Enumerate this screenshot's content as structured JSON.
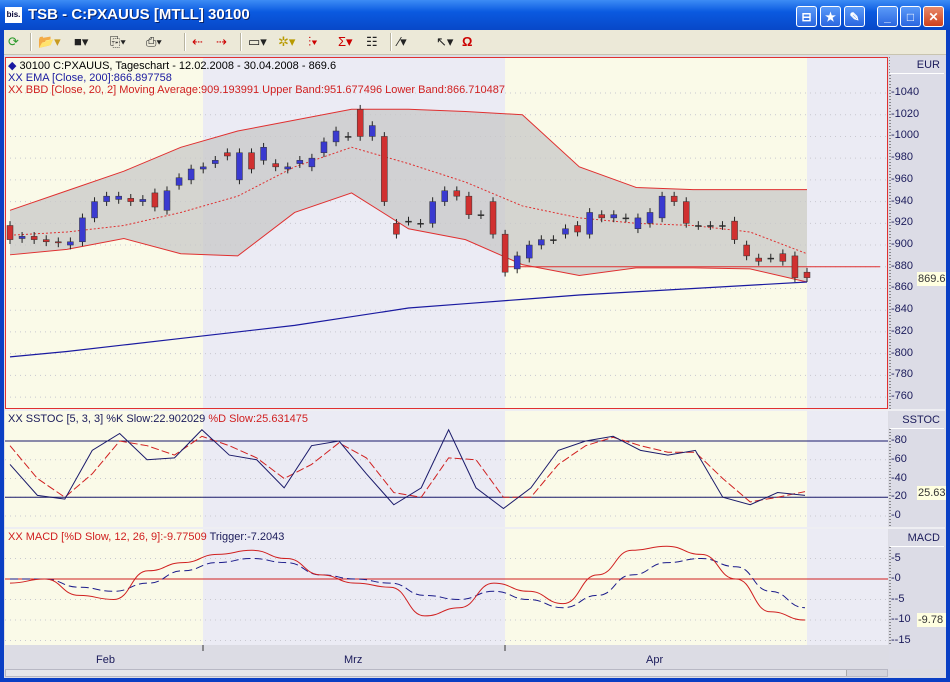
{
  "window": {
    "title": "TSB - C:PXAUUS [MTLL] 30100",
    "app_icon": "bis."
  },
  "titlebar_buttons": [
    "pin-icon",
    "favorite-icon",
    "edit-icon",
    "minimize-icon",
    "maximize-icon",
    "close-icon"
  ],
  "toolbar": {
    "items": [
      "refresh-icon",
      "open-folder-icon",
      "save-icon",
      "copy-icon",
      "print-icon",
      "back-chart-icon",
      "forward-chart-icon",
      "window-layout-icon",
      "indicator-wizard-icon",
      "chart-type-icon",
      "sigma-indicator-icon",
      "properties-icon",
      "draw-line-icon",
      "cursor-icon",
      "magnet-icon"
    ]
  },
  "colors": {
    "bull": "#3a3ad0",
    "bear": "#d03030",
    "band_fill": "#c8c8c8",
    "band_line": "#e03030",
    "ema": "#1a1aa0",
    "panel_border": "#e03030",
    "bg_yellow": "#fafae8",
    "bg_lavender": "#ebebf4"
  },
  "price_panel": {
    "legend": [
      {
        "text": "30100  C:PXAUUS, Tageschart - 12.02.2008 - 30.04.2008 - 869.6",
        "color": "#000000"
      },
      {
        "text": "XX EMA [Close, 200]:866.897758",
        "color": "#1a1aa0"
      },
      {
        "text": "XX BBD [Close, 20, 2] Moving Average:909.193991 Upper Band:951.677496 Lower Band:866.710487",
        "color": "#d02020"
      }
    ],
    "axis_title": "EUR",
    "last_value": "869.6",
    "ticks": [
      "1040",
      "1020",
      "1000",
      "980",
      "960",
      "940",
      "920",
      "900",
      "880",
      "860",
      "840",
      "820",
      "800",
      "780",
      "760"
    ]
  },
  "sstoc_panel": {
    "legend_k": "XX SSTOC [5, 3, 3] %K Slow:22.902029",
    "legend_d": "%D Slow:25.631475",
    "axis_title": "SSTOC",
    "last_value": "25.63",
    "ticks": [
      "80",
      "60",
      "40",
      "20",
      "0"
    ]
  },
  "macd_panel": {
    "legend_macd": "XX MACD [%D Slow, 12, 26, 9]:-9.77509",
    "legend_trigger": "Trigger:-7.2043",
    "axis_title": "MACD",
    "last_value": "-9.78",
    "ticks": [
      "5",
      "0",
      "-5",
      "-10",
      "-15"
    ]
  },
  "time_axis": {
    "months": [
      "Feb",
      "Mrz",
      "Apr"
    ]
  },
  "chart_data": [
    {
      "type": "candlestick",
      "title": "30100  C:PXAUUS, Tageschart - 12.02.2008 - 30.04.2008 - 869.6",
      "ylabel": "EUR",
      "ylim": [
        750,
        1050
      ],
      "x_range": [
        "12.02.2008",
        "30.04.2008"
      ],
      "open": [
        918,
        906,
        908,
        905,
        903,
        900,
        903,
        925,
        940,
        942,
        943,
        940,
        948,
        932,
        955,
        960,
        970,
        975,
        985,
        960,
        985,
        978,
        975,
        970,
        975,
        972,
        985,
        995,
        1000,
        1025,
        1000,
        1000,
        920,
        922,
        920,
        920,
        940,
        950,
        945,
        928,
        940,
        910,
        878,
        888,
        900,
        905,
        910,
        918,
        910,
        928,
        925,
        925,
        915,
        920,
        925,
        945,
        940,
        918,
        918,
        918,
        922,
        900,
        888,
        888,
        892,
        890,
        875
      ],
      "close": [
        905,
        908,
        905,
        903,
        902,
        903,
        925,
        940,
        945,
        945,
        940,
        942,
        935,
        950,
        962,
        970,
        972,
        978,
        982,
        985,
        970,
        990,
        972,
        972,
        978,
        980,
        995,
        1005,
        1000,
        1000,
        1010,
        940,
        910,
        922,
        920,
        940,
        950,
        945,
        928,
        928,
        910,
        875,
        890,
        900,
        905,
        905,
        915,
        912,
        930,
        925,
        928,
        925,
        925,
        930,
        945,
        940,
        920,
        918,
        918,
        918,
        905,
        890,
        885,
        888,
        885,
        870,
        870
      ],
      "bollinger": {
        "upper": [
          932,
          950,
          968,
          990,
          1005,
          1015,
          1025,
          1025,
          1023,
          1020,
          972,
          953,
          951,
          951,
          951
        ],
        "middle": [
          909,
          912,
          918,
          930,
          945,
          972,
          990,
          975,
          958,
          936,
          925,
          920,
          918,
          912,
          892
        ],
        "lower": [
          891,
          896,
          906,
          892,
          890,
          930,
          948,
          915,
          905,
          882,
          872,
          879,
          879,
          878,
          866
        ]
      },
      "ema200": [
        797,
        802,
        808,
        814,
        820,
        826,
        834,
        842,
        846,
        850,
        854,
        857,
        860,
        863,
        866
      ],
      "horizontal_line": 880,
      "grid": true
    },
    {
      "type": "line",
      "title": "XX SSTOC [5, 3, 3]",
      "ylim": [
        -5,
        100
      ],
      "reference_lines": [
        80,
        20
      ],
      "series": [
        {
          "name": "%K Slow",
          "values": [
            55,
            22,
            18,
            70,
            88,
            60,
            62,
            92,
            65,
            60,
            30,
            75,
            80,
            45,
            12,
            30,
            92,
            30,
            8,
            30,
            70,
            80,
            85,
            70,
            65,
            70,
            20,
            12,
            25,
            22
          ]
        },
        {
          "name": "%D Slow",
          "values": [
            75,
            40,
            20,
            45,
            80,
            75,
            65,
            85,
            75,
            62,
            40,
            55,
            78,
            62,
            25,
            20,
            62,
            60,
            20,
            20,
            55,
            75,
            84,
            75,
            68,
            68,
            40,
            15,
            20,
            26
          ]
        }
      ],
      "grid": true
    },
    {
      "type": "line",
      "title": "XX MACD [%D Slow, 12, 26, 9]",
      "ylim": [
        -16,
        9
      ],
      "reference_lines": [
        0
      ],
      "series": [
        {
          "name": "MACD",
          "values": [
            -1,
            0,
            -4,
            -5,
            2,
            4,
            6,
            7,
            5,
            1,
            -1,
            -2,
            -9,
            -7,
            -1,
            -3,
            -6,
            1,
            7,
            8,
            6,
            0,
            -8,
            -10
          ]
        },
        {
          "name": "Trigger",
          "values": [
            0,
            0,
            -2,
            -3,
            -1,
            2,
            4,
            5,
            4,
            1,
            0,
            -1,
            -4,
            -5,
            -3,
            -5,
            -7,
            -4,
            1,
            4,
            5,
            3,
            -3,
            -7
          ]
        }
      ],
      "grid": true
    }
  ]
}
